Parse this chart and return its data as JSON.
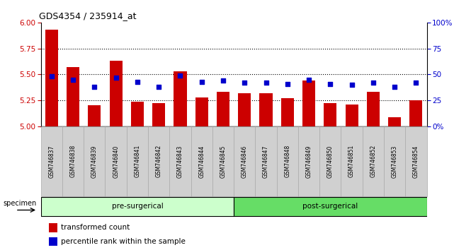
{
  "title": "GDS4354 / 235914_at",
  "samples": [
    "GSM746837",
    "GSM746838",
    "GSM746839",
    "GSM746840",
    "GSM746841",
    "GSM746842",
    "GSM746843",
    "GSM746844",
    "GSM746845",
    "GSM746846",
    "GSM746847",
    "GSM746848",
    "GSM746849",
    "GSM746850",
    "GSM746851",
    "GSM746852",
    "GSM746853",
    "GSM746854"
  ],
  "bar_values": [
    5.93,
    5.57,
    5.2,
    5.63,
    5.24,
    5.22,
    5.53,
    5.28,
    5.33,
    5.32,
    5.32,
    5.27,
    5.44,
    5.22,
    5.21,
    5.33,
    5.09,
    5.25
  ],
  "dot_values": [
    48,
    45,
    38,
    47,
    43,
    38,
    49,
    43,
    44,
    42,
    42,
    41,
    45,
    41,
    40,
    42,
    38,
    42
  ],
  "ylim_left": [
    5.0,
    6.0
  ],
  "ylim_right": [
    0,
    100
  ],
  "yticks_left": [
    5.0,
    5.25,
    5.5,
    5.75,
    6.0
  ],
  "yticks_right": [
    0,
    25,
    50,
    75,
    100
  ],
  "grid_values": [
    5.25,
    5.5,
    5.75
  ],
  "bar_color": "#cc0000",
  "dot_color": "#0000cc",
  "bar_width": 0.6,
  "pre_surgical_count": 9,
  "post_surgical_count": 9,
  "pre_label": "pre-surgerical",
  "post_label": "post-surgerical",
  "specimen_label": "specimen",
  "legend_bar_label": "transformed count",
  "legend_dot_label": "percentile rank within the sample",
  "pre_color": "#ccffcc",
  "post_color": "#66dd66",
  "tick_label_color_left": "#cc0000",
  "tick_label_color_right": "#0000cc",
  "tick_box_color": "#d0d0d0",
  "tick_box_edge": "#aaaaaa"
}
